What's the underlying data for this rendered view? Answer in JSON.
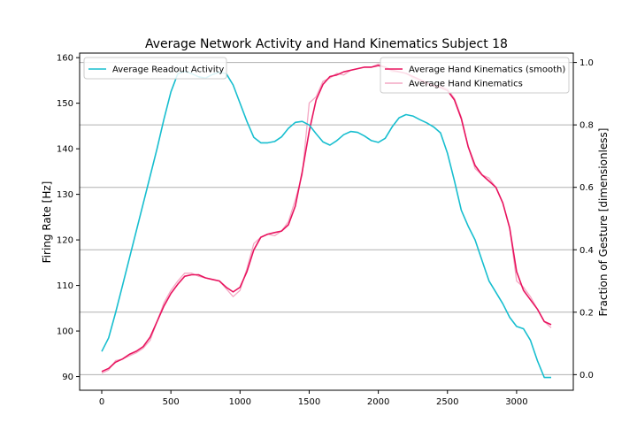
{
  "chart_data": {
    "type": "line",
    "title": "Average Network Activity and Hand Kinematics Subject 18",
    "xlabel": "",
    "ylabel_left": "Firing Rate [Hz]",
    "ylabel_right": "Fraction of Gesture [dimensionless]",
    "xlim": [
      -160,
      3410
    ],
    "ylim_left": [
      87,
      161
    ],
    "ylim_right": [
      -0.05,
      1.03
    ],
    "xticks": [
      0,
      500,
      1000,
      1500,
      2000,
      2500,
      3000
    ],
    "yticks_left": [
      90,
      100,
      110,
      120,
      130,
      140,
      150,
      160
    ],
    "yticks_right": [
      "0.0",
      "0.2",
      "0.4",
      "0.6",
      "0.8",
      "1.0"
    ],
    "grid": "horizontal lines at right-axis ticks",
    "legend_left": {
      "placement": "top-left",
      "entries": [
        "Average Readout Activity"
      ]
    },
    "legend_right": {
      "placement": "top-right",
      "entries": [
        "Average Hand Kinematics (smooth)",
        "Average Hand Kinematics"
      ]
    },
    "series": [
      {
        "name": "Average Readout Activity",
        "axis": "left",
        "color": "#17becf",
        "x": [
          0,
          50,
          100,
          150,
          200,
          250,
          300,
          350,
          400,
          450,
          500,
          550,
          600,
          650,
          700,
          750,
          800,
          850,
          900,
          950,
          1000,
          1050,
          1100,
          1150,
          1200,
          1250,
          1300,
          1350,
          1400,
          1450,
          1500,
          1550,
          1600,
          1650,
          1700,
          1750,
          1800,
          1850,
          1900,
          1950,
          2000,
          2050,
          2100,
          2150,
          2200,
          2250,
          2300,
          2350,
          2400,
          2450,
          2500,
          2550,
          2600,
          2650,
          2700,
          2750,
          2800,
          2850,
          2900,
          2950,
          3000,
          3050,
          3100,
          3150,
          3200,
          3250
        ],
        "y": [
          95.5,
          98.5,
          104,
          110,
          116,
          122,
          128,
          134,
          140,
          146.5,
          152.5,
          156.5,
          157,
          156.5,
          155.8,
          155.5,
          156.3,
          156.8,
          156.5,
          154,
          150,
          146,
          142.5,
          141.3,
          141.3,
          141.6,
          142.6,
          144.5,
          145.8,
          146,
          145.2,
          143.3,
          141.5,
          140.8,
          141.8,
          143.1,
          143.8,
          143.6,
          142.8,
          141.8,
          141.4,
          142.3,
          144.8,
          146.8,
          147.5,
          147.2,
          146.4,
          145.7,
          144.8,
          143.5,
          139,
          133,
          126.5,
          123,
          120,
          115.5,
          111,
          108.5,
          106,
          103,
          101,
          100.5,
          98,
          93.5,
          89.8,
          89.8
        ]
      },
      {
        "name": "Average Hand Kinematics (smooth)",
        "axis": "right",
        "color": "#e8145f",
        "x": [
          0,
          50,
          100,
          150,
          200,
          250,
          300,
          350,
          400,
          450,
          500,
          550,
          600,
          650,
          700,
          750,
          800,
          850,
          900,
          950,
          1000,
          1050,
          1100,
          1150,
          1200,
          1250,
          1300,
          1350,
          1400,
          1450,
          1500,
          1550,
          1600,
          1650,
          1700,
          1750,
          1800,
          1850,
          1900,
          1950,
          2000,
          2050,
          2100,
          2150,
          2200,
          2250,
          2300,
          2350,
          2400,
          2450,
          2500,
          2550,
          2600,
          2650,
          2700,
          2750,
          2800,
          2850,
          2900,
          2950,
          3000,
          3050,
          3100,
          3150,
          3200,
          3250
        ],
        "y": [
          0.01,
          0.02,
          0.04,
          0.05,
          0.065,
          0.075,
          0.09,
          0.12,
          0.17,
          0.22,
          0.26,
          0.29,
          0.315,
          0.32,
          0.32,
          0.31,
          0.305,
          0.3,
          0.28,
          0.265,
          0.28,
          0.33,
          0.4,
          0.44,
          0.45,
          0.455,
          0.46,
          0.48,
          0.54,
          0.65,
          0.78,
          0.88,
          0.93,
          0.955,
          0.96,
          0.97,
          0.975,
          0.98,
          0.985,
          0.985,
          0.99,
          0.985,
          0.975,
          0.97,
          0.965,
          0.955,
          0.945,
          0.935,
          0.925,
          0.92,
          0.91,
          0.88,
          0.82,
          0.73,
          0.67,
          0.64,
          0.62,
          0.6,
          0.55,
          0.47,
          0.33,
          0.27,
          0.24,
          0.21,
          0.17,
          0.16
        ]
      },
      {
        "name": "Average Hand Kinematics",
        "axis": "right",
        "color": "#f4a7c3",
        "x": [
          0,
          50,
          100,
          150,
          200,
          250,
          300,
          350,
          400,
          450,
          500,
          550,
          600,
          650,
          700,
          750,
          800,
          850,
          900,
          950,
          1000,
          1050,
          1100,
          1150,
          1200,
          1250,
          1300,
          1350,
          1400,
          1450,
          1500,
          1550,
          1600,
          1650,
          1700,
          1750,
          1800,
          1850,
          1900,
          1950,
          2000,
          2050,
          2100,
          2150,
          2200,
          2250,
          2300,
          2350,
          2400,
          2450,
          2500,
          2550,
          2600,
          2650,
          2700,
          2750,
          2800,
          2850,
          2900,
          2950,
          3000,
          3050,
          3100,
          3150,
          3200,
          3250
        ],
        "y": [
          0.005,
          0.015,
          0.045,
          0.05,
          0.06,
          0.07,
          0.085,
          0.11,
          0.17,
          0.23,
          0.27,
          0.3,
          0.325,
          0.325,
          0.315,
          0.31,
          0.305,
          0.3,
          0.275,
          0.25,
          0.27,
          0.34,
          0.42,
          0.44,
          0.45,
          0.445,
          0.46,
          0.49,
          0.56,
          0.64,
          0.87,
          0.89,
          0.94,
          0.95,
          0.965,
          0.96,
          0.975,
          0.98,
          0.985,
          0.985,
          0.995,
          0.985,
          0.97,
          0.97,
          0.965,
          0.95,
          0.94,
          0.93,
          0.925,
          0.925,
          0.915,
          0.885,
          0.825,
          0.73,
          0.66,
          0.64,
          0.63,
          0.6,
          0.55,
          0.47,
          0.3,
          0.28,
          0.25,
          0.21,
          0.17,
          0.15
        ]
      }
    ]
  }
}
